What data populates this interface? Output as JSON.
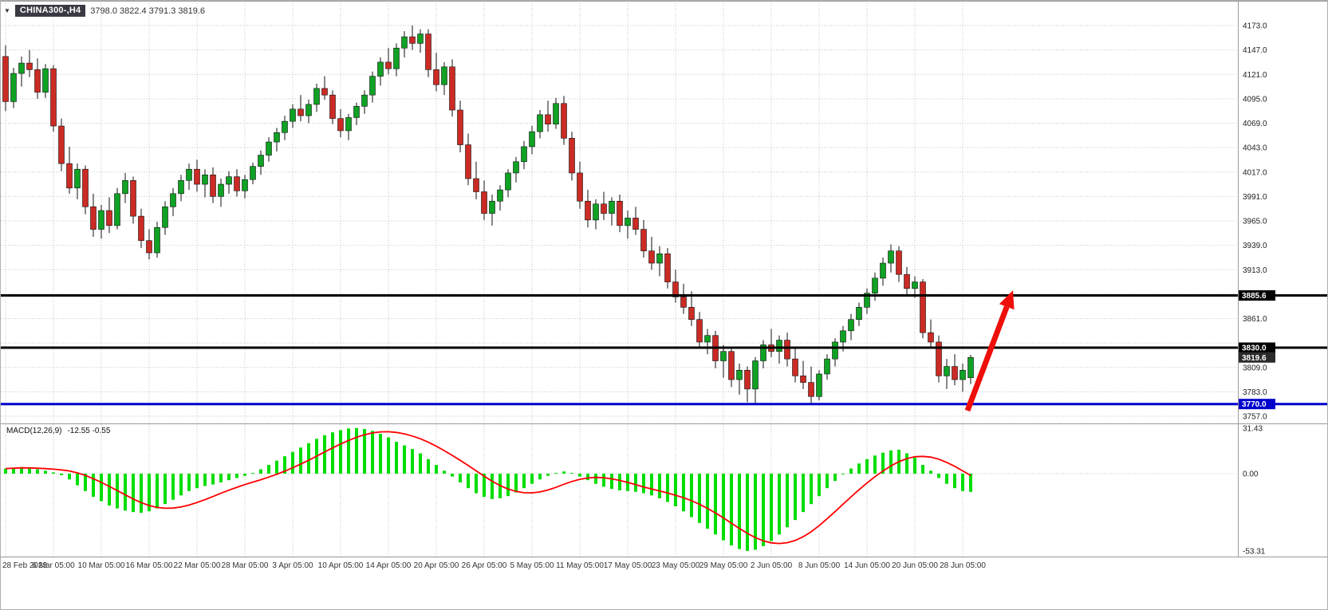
{
  "header": {
    "symbol": "CHINA300-,H4",
    "ohlc_text": "3798.0 3822.4 3791.3 3819.6",
    "open": "3798.0",
    "high": "3822.4",
    "low": "3791.3",
    "close": "3819.6"
  },
  "macd": {
    "label": "MACD(12,26,9)",
    "value_text": "-12.55 -0.55",
    "macd_value": "-12.55",
    "signal_value": "-0.55",
    "axis_labels": [
      "31.43",
      "0.00",
      "-53.31"
    ]
  },
  "price_axis": {
    "labels": [
      "4173.0",
      "4147.0",
      "4121.0",
      "4095.0",
      "4069.0",
      "4043.0",
      "4017.0",
      "3991.0",
      "3965.0",
      "3939.0",
      "3913.0",
      "3861.0",
      "3809.0",
      "3783.0",
      "3757.0"
    ],
    "tags": [
      {
        "text": "3885.6",
        "price": 3885.6,
        "bg": "#000000",
        "fg": "#ffffff",
        "kind": "resistance-line-price-tag"
      },
      {
        "text": "3830.0",
        "price": 3830.0,
        "bg": "#000000",
        "fg": "#ffffff",
        "kind": "level-line-price-tag"
      },
      {
        "text": "3819.6",
        "price": 3819.6,
        "bg": "#2b2b2b",
        "fg": "#ffffff",
        "kind": "current-price-tag"
      },
      {
        "text": "3770.0",
        "price": 3770.0,
        "bg": "#0000cc",
        "fg": "#ffffff",
        "kind": "support-line-price-tag"
      }
    ]
  },
  "date_axis": [
    "28 Feb 2023",
    "6 Mar 05:00",
    "10 Mar 05:00",
    "16 Mar 05:00",
    "22 Mar 05:00",
    "28 Mar 05:00",
    "3 Apr 05:00",
    "10 Apr 05:00",
    "14 Apr 05:00",
    "20 Apr 05:00",
    "26 Apr 05:00",
    "5 May 05:00",
    "11 May 05:00",
    "17 May 05:00",
    "23 May 05:00",
    "29 May 05:00",
    "2 Jun 05:00",
    "8 Jun 05:00",
    "14 Jun 05:00",
    "20 Jun 05:00",
    "28 Jun 05:00"
  ],
  "chart_data": {
    "type": "candlestick",
    "symbol": "CHINA300",
    "timeframe": "H4",
    "title": "CHINA300-,H4",
    "ylim": [
      3749,
      4199
    ],
    "price_grid": {
      "top": 4173,
      "step": 26,
      "count": 17
    },
    "bull_color": "#0fa224",
    "bear_color": "#cb2b24",
    "wick_color": "#111111",
    "current_price": 3819.6,
    "candles": [
      [
        4140,
        4152,
        4082,
        4092
      ],
      [
        4092,
        4128,
        4085,
        4122
      ],
      [
        4122,
        4140,
        4108,
        4133
      ],
      [
        4133,
        4147,
        4118,
        4126
      ],
      [
        4126,
        4138,
        4095,
        4102
      ],
      [
        4102,
        4132,
        4096,
        4127
      ],
      [
        4127,
        4131,
        4060,
        4066
      ],
      [
        4066,
        4074,
        4018,
        4026
      ],
      [
        4026,
        4044,
        3994,
        4000
      ],
      [
        4000,
        4026,
        3988,
        4020
      ],
      [
        4020,
        4024,
        3972,
        3980
      ],
      [
        3980,
        3994,
        3948,
        3956
      ],
      [
        3956,
        3982,
        3946,
        3976
      ],
      [
        3976,
        3990,
        3952,
        3960
      ],
      [
        3960,
        4000,
        3956,
        3994
      ],
      [
        3994,
        4016,
        3984,
        4008
      ],
      [
        4008,
        4012,
        3962,
        3970
      ],
      [
        3970,
        3978,
        3936,
        3944
      ],
      [
        3944,
        3956,
        3924,
        3931
      ],
      [
        3931,
        3964,
        3926,
        3958
      ],
      [
        3958,
        3986,
        3950,
        3980
      ],
      [
        3980,
        4000,
        3970,
        3994
      ],
      [
        3994,
        4014,
        3986,
        4008
      ],
      [
        4008,
        4026,
        3998,
        4020
      ],
      [
        4020,
        4030,
        3996,
        4004
      ],
      [
        4004,
        4020,
        3990,
        4014
      ],
      [
        4014,
        4022,
        3984,
        3991
      ],
      [
        3991,
        4010,
        3980,
        4004
      ],
      [
        4004,
        4018,
        3994,
        4012
      ],
      [
        4012,
        4020,
        3991,
        3997
      ],
      [
        3997,
        4014,
        3989,
        4009
      ],
      [
        4009,
        4027,
        4004,
        4023
      ],
      [
        4023,
        4040,
        4014,
        4035
      ],
      [
        4035,
        4054,
        4028,
        4049
      ],
      [
        4049,
        4064,
        4039,
        4059
      ],
      [
        4059,
        4077,
        4051,
        4071
      ],
      [
        4071,
        4089,
        4064,
        4084
      ],
      [
        4084,
        4099,
        4071,
        4077
      ],
      [
        4077,
        4094,
        4069,
        4089
      ],
      [
        4089,
        4111,
        4081,
        4106
      ],
      [
        4106,
        4119,
        4094,
        4099
      ],
      [
        4099,
        4104,
        4068,
        4074
      ],
      [
        4074,
        4084,
        4054,
        4061
      ],
      [
        4061,
        4079,
        4051,
        4075
      ],
      [
        4075,
        4091,
        4067,
        4087
      ],
      [
        4087,
        4104,
        4079,
        4099
      ],
      [
        4099,
        4124,
        4091,
        4119
      ],
      [
        4119,
        4139,
        4109,
        4134
      ],
      [
        4134,
        4149,
        4121,
        4127
      ],
      [
        4127,
        4154,
        4119,
        4149
      ],
      [
        4149,
        4167,
        4139,
        4161
      ],
      [
        4161,
        4173,
        4147,
        4154
      ],
      [
        4154,
        4169,
        4144,
        4164
      ],
      [
        4164,
        4169,
        4118,
        4126
      ],
      [
        4126,
        4144,
        4103,
        4110
      ],
      [
        4110,
        4134,
        4099,
        4129
      ],
      [
        4129,
        4137,
        4076,
        4083
      ],
      [
        4083,
        4093,
        4038,
        4046
      ],
      [
        4046,
        4058,
        4003,
        4010
      ],
      [
        4010,
        4028,
        3988,
        3996
      ],
      [
        3996,
        4008,
        3966,
        3973
      ],
      [
        3973,
        3993,
        3960,
        3986
      ],
      [
        3986,
        4003,
        3976,
        3998
      ],
      [
        3998,
        4020,
        3990,
        4016
      ],
      [
        4016,
        4033,
        4006,
        4028
      ],
      [
        4028,
        4050,
        4020,
        4044
      ],
      [
        4044,
        4066,
        4036,
        4060
      ],
      [
        4060,
        4083,
        4053,
        4078
      ],
      [
        4078,
        4093,
        4060,
        4068
      ],
      [
        4068,
        4096,
        4063,
        4090
      ],
      [
        4090,
        4098,
        4046,
        4053
      ],
      [
        4053,
        4060,
        4008,
        4016
      ],
      [
        4016,
        4028,
        3978,
        3986
      ],
      [
        3986,
        3998,
        3958,
        3966
      ],
      [
        3966,
        3988,
        3956,
        3983
      ],
      [
        3983,
        3996,
        3966,
        3973
      ],
      [
        3973,
        3990,
        3960,
        3986
      ],
      [
        3986,
        3993,
        3953,
        3960
      ],
      [
        3960,
        3976,
        3946,
        3968
      ],
      [
        3968,
        3980,
        3950,
        3956
      ],
      [
        3956,
        3966,
        3926,
        3933
      ],
      [
        3933,
        3948,
        3913,
        3920
      ],
      [
        3920,
        3938,
        3906,
        3930
      ],
      [
        3930,
        3936,
        3893,
        3900
      ],
      [
        3900,
        3913,
        3878,
        3884
      ],
      [
        3884,
        3898,
        3866,
        3873
      ],
      [
        3873,
        3890,
        3853,
        3860
      ],
      [
        3860,
        3868,
        3830,
        3836
      ],
      [
        3836,
        3850,
        3823,
        3843
      ],
      [
        3843,
        3848,
        3808,
        3816
      ],
      [
        3816,
        3833,
        3798,
        3826
      ],
      [
        3826,
        3830,
        3788,
        3796
      ],
      [
        3796,
        3813,
        3780,
        3806
      ],
      [
        3806,
        3810,
        3772,
        3786
      ],
      [
        3786,
        3820,
        3770,
        3816
      ],
      [
        3816,
        3838,
        3808,
        3833
      ],
      [
        3833,
        3850,
        3820,
        3826
      ],
      [
        3826,
        3843,
        3813,
        3838
      ],
      [
        3838,
        3846,
        3810,
        3818
      ],
      [
        3818,
        3830,
        3793,
        3800
      ],
      [
        3800,
        3816,
        3786,
        3793
      ],
      [
        3793,
        3810,
        3770,
        3778
      ],
      [
        3778,
        3806,
        3774,
        3802
      ],
      [
        3802,
        3823,
        3796,
        3818
      ],
      [
        3818,
        3840,
        3810,
        3836
      ],
      [
        3836,
        3853,
        3826,
        3848
      ],
      [
        3848,
        3866,
        3838,
        3860
      ],
      [
        3860,
        3878,
        3853,
        3873
      ],
      [
        3873,
        3893,
        3866,
        3888
      ],
      [
        3888,
        3910,
        3880,
        3904
      ],
      [
        3904,
        3926,
        3896,
        3920
      ],
      [
        3920,
        3940,
        3910,
        3933
      ],
      [
        3933,
        3938,
        3900,
        3908
      ],
      [
        3908,
        3916,
        3886,
        3893
      ],
      [
        3893,
        3906,
        3883,
        3900
      ],
      [
        3900,
        3903,
        3840,
        3846
      ],
      [
        3846,
        3860,
        3830,
        3836
      ],
      [
        3836,
        3843,
        3793,
        3800
      ],
      [
        3800,
        3818,
        3786,
        3810
      ],
      [
        3810,
        3823,
        3790,
        3796
      ],
      [
        3796,
        3813,
        3783,
        3806
      ],
      [
        3798,
        3822.4,
        3791.3,
        3819.6
      ]
    ],
    "hlines": [
      {
        "price": 3885.6,
        "color": "#000000",
        "width": 3,
        "name": "resistance-line-3885.6"
      },
      {
        "price": 3830.0,
        "color": "#000000",
        "width": 3,
        "name": "level-line-3830.0"
      },
      {
        "price": 3770.0,
        "color": "#0000cc",
        "width": 3,
        "name": "support-line-3770.0"
      }
    ],
    "arrow": {
      "color": "#ee0f0a",
      "from_candle": 120.6,
      "from_price": 3763,
      "to_candle": 126.3,
      "to_price": 3891
    },
    "macd": {
      "type": "histogram+signal",
      "histogram_color": "#00dd00",
      "signal_color": "#ff0000",
      "signal_period": 9,
      "range": [
        -53.31,
        31.43
      ],
      "histogram": [
        3.5,
        4,
        4.5,
        3.8,
        3,
        2,
        0.8,
        -1,
        -4,
        -8,
        -12,
        -16,
        -19,
        -22,
        -24,
        -25.5,
        -26.5,
        -27,
        -26,
        -24,
        -21,
        -18,
        -15,
        -12,
        -10,
        -8.5,
        -7.5,
        -6,
        -4.5,
        -3,
        -1.5,
        0.5,
        3,
        6,
        9,
        12,
        15,
        18,
        21,
        24,
        26.5,
        28.5,
        30,
        31.2,
        31.43,
        30.8,
        29.5,
        27.5,
        25,
        22,
        19.5,
        17,
        14,
        10,
        6,
        2,
        -2,
        -6,
        -10,
        -13.5,
        -16,
        -17.5,
        -17,
        -15.5,
        -13,
        -10,
        -7,
        -4,
        -1.5,
        0.5,
        1.5,
        0.5,
        -2,
        -4.5,
        -7,
        -9,
        -10.5,
        -11.5,
        -12,
        -12.5,
        -13.5,
        -15,
        -17,
        -19.5,
        -22.5,
        -26,
        -30,
        -34,
        -38,
        -42,
        -46,
        -49.5,
        -52,
        -53.31,
        -52.5,
        -50,
        -46.5,
        -42,
        -37,
        -32,
        -26.5,
        -21,
        -15.5,
        -10,
        -5,
        -0.5,
        3.5,
        7,
        10,
        12.5,
        14.5,
        16,
        16.5,
        14,
        11,
        6,
        2,
        -3,
        -7,
        -10,
        -12,
        -12.55
      ]
    }
  }
}
